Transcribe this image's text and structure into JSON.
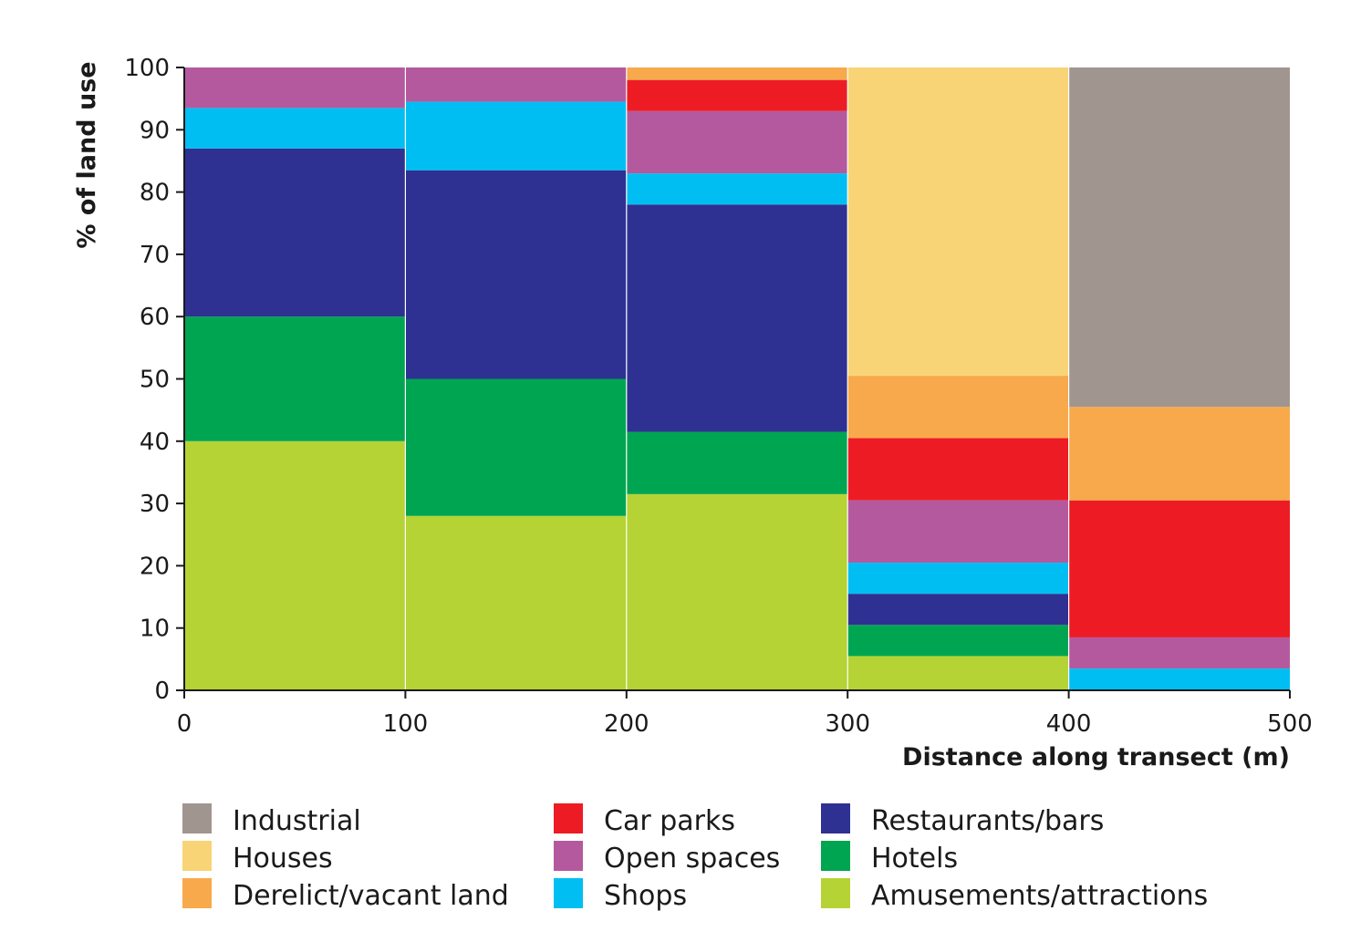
{
  "chart_data": {
    "type": "bar",
    "subtype": "stacked-100-percent",
    "xlabel": "Distance along transect (m)",
    "ylabel": "% of land use",
    "xlim": [
      0,
      500
    ],
    "ylim": [
      0,
      100
    ],
    "x_ticks": [
      "0",
      "100",
      "200",
      "300",
      "400",
      "500"
    ],
    "y_ticks": [
      "0",
      "10",
      "20",
      "30",
      "40",
      "50",
      "60",
      "70",
      "80",
      "90",
      "100"
    ],
    "grid": false,
    "legend_position": "bottom",
    "bins": [
      [
        0,
        100
      ],
      [
        100,
        200
      ],
      [
        200,
        300
      ],
      [
        300,
        400
      ],
      [
        400,
        500
      ]
    ],
    "series": [
      {
        "name": "Amusements/attractions",
        "color": "#b5d334",
        "values": [
          40,
          28,
          31.5,
          5.5,
          0
        ]
      },
      {
        "name": "Hotels",
        "color": "#00a551",
        "values": [
          20,
          22,
          10,
          5,
          0
        ]
      },
      {
        "name": "Restaurants/bars",
        "color": "#2e3192",
        "values": [
          27,
          33.5,
          36.5,
          5,
          0
        ]
      },
      {
        "name": "Shops",
        "color": "#00bef2",
        "values": [
          6.5,
          11,
          5,
          5,
          3.5
        ]
      },
      {
        "name": "Open spaces",
        "color": "#b5599f",
        "values": [
          6.5,
          5.5,
          10,
          10,
          5
        ]
      },
      {
        "name": "Car parks",
        "color": "#ed1c24",
        "values": [
          0,
          0,
          5,
          10,
          22
        ]
      },
      {
        "name": "Derelict/vacant land",
        "color": "#f7a94b",
        "values": [
          0,
          0,
          2,
          10,
          15
        ]
      },
      {
        "name": "Houses",
        "color": "#f8d477",
        "values": [
          0,
          0,
          0,
          49.5,
          0
        ]
      },
      {
        "name": "Industrial",
        "color": "#a19590",
        "values": [
          0,
          0,
          0,
          0,
          54.5
        ]
      }
    ],
    "legend_columns": [
      [
        "Industrial",
        "Houses",
        "Derelict/vacant land"
      ],
      [
        "Car parks",
        "Open spaces",
        "Shops"
      ],
      [
        "Restaurants/bars",
        "Hotels",
        "Amusements/attractions"
      ]
    ]
  }
}
